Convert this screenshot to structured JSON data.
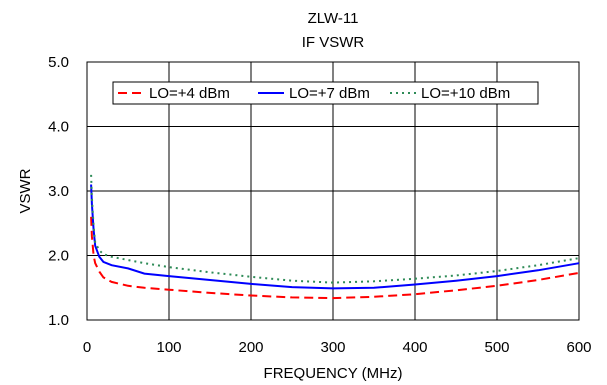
{
  "chart_data": {
    "type": "line",
    "title": "ZLW-11",
    "subtitle": "IF VSWR",
    "xlabel": "FREQUENCY (MHz)",
    "ylabel": "VSWR",
    "xlim": [
      0,
      600
    ],
    "ylim": [
      1.0,
      5.0
    ],
    "x_ticks": [
      0,
      100,
      200,
      300,
      400,
      500,
      600
    ],
    "x_tick_labels": [
      "0",
      "100",
      "200",
      "300",
      "400",
      "500",
      "600"
    ],
    "y_ticks": [
      1.0,
      2.0,
      3.0,
      4.0,
      5.0
    ],
    "y_tick_labels": [
      "1.0",
      "2.0",
      "3.0",
      "4.0",
      "5.0"
    ],
    "grid": true,
    "legend_position": "top",
    "series": [
      {
        "name": "LO=+4 dBm",
        "color": "#ff0000",
        "dash": "dashed",
        "x": [
          5,
          6,
          8,
          10,
          15,
          20,
          30,
          50,
          70,
          100,
          150,
          200,
          250,
          300,
          350,
          400,
          450,
          500,
          550,
          600
        ],
        "y": [
          2.6,
          2.3,
          2.0,
          1.88,
          1.75,
          1.66,
          1.59,
          1.53,
          1.5,
          1.47,
          1.42,
          1.38,
          1.35,
          1.34,
          1.36,
          1.4,
          1.46,
          1.53,
          1.62,
          1.73
        ]
      },
      {
        "name": "LO=+7 dBm",
        "color": "#0000ff",
        "dash": "solid",
        "x": [
          5,
          6,
          8,
          10,
          15,
          20,
          30,
          50,
          70,
          100,
          150,
          200,
          250,
          300,
          350,
          400,
          450,
          500,
          550,
          600
        ],
        "y": [
          3.1,
          2.8,
          2.4,
          2.15,
          1.98,
          1.9,
          1.85,
          1.8,
          1.72,
          1.68,
          1.62,
          1.56,
          1.51,
          1.49,
          1.5,
          1.55,
          1.61,
          1.68,
          1.77,
          1.88
        ]
      },
      {
        "name": "LO=+10 dBm",
        "color": "#2e8b57",
        "dash": "dotted",
        "x": [
          5,
          6,
          8,
          10,
          15,
          20,
          30,
          50,
          70,
          100,
          150,
          200,
          250,
          300,
          350,
          400,
          450,
          500,
          550,
          600
        ],
        "y": [
          3.25,
          2.9,
          2.45,
          2.2,
          2.08,
          2.02,
          1.98,
          1.93,
          1.88,
          1.82,
          1.74,
          1.67,
          1.61,
          1.58,
          1.6,
          1.64,
          1.69,
          1.76,
          1.85,
          1.96
        ]
      }
    ]
  }
}
